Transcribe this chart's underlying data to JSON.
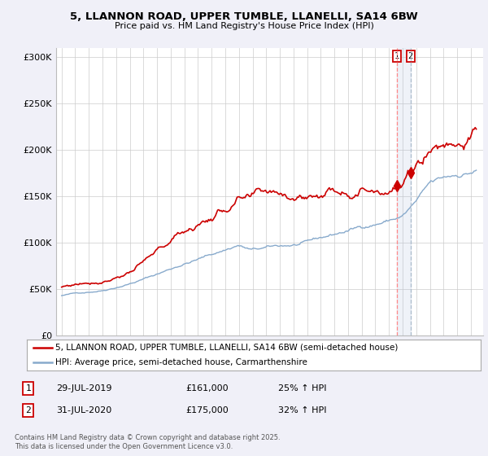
{
  "title_line1": "5, LLANNON ROAD, UPPER TUMBLE, LLANELLI, SA14 6BW",
  "title_line2": "Price paid vs. HM Land Registry's House Price Index (HPI)",
  "legend_label1": "5, LLANNON ROAD, UPPER TUMBLE, LLANELLI, SA14 6BW (semi-detached house)",
  "legend_label2": "HPI: Average price, semi-detached house, Carmarthenshire",
  "annotation1_date": "29-JUL-2019",
  "annotation1_price": "£161,000",
  "annotation1_hpi": "25% ↑ HPI",
  "annotation2_date": "31-JUL-2020",
  "annotation2_price": "£175,000",
  "annotation2_hpi": "32% ↑ HPI",
  "footer": "Contains HM Land Registry data © Crown copyright and database right 2025.\nThis data is licensed under the Open Government Licence v3.0.",
  "line1_color": "#cc0000",
  "line2_color": "#88aacc",
  "vline1_color": "#ff8888",
  "vline2_color": "#aabbcc",
  "marker_color": "#cc0000",
  "background_color": "#f0f0f8",
  "plot_bg_color": "#ffffff",
  "ylim": [
    0,
    310000
  ],
  "yticks": [
    0,
    50000,
    100000,
    150000,
    200000,
    250000,
    300000
  ],
  "ytick_labels": [
    "£0",
    "£50K",
    "£100K",
    "£150K",
    "£200K",
    "£250K",
    "£300K"
  ],
  "year_start": 1995,
  "year_end": 2025,
  "sale1_year": 2019.58,
  "sale2_year": 2020.58,
  "sale1_price": 161000,
  "sale2_price": 175000
}
